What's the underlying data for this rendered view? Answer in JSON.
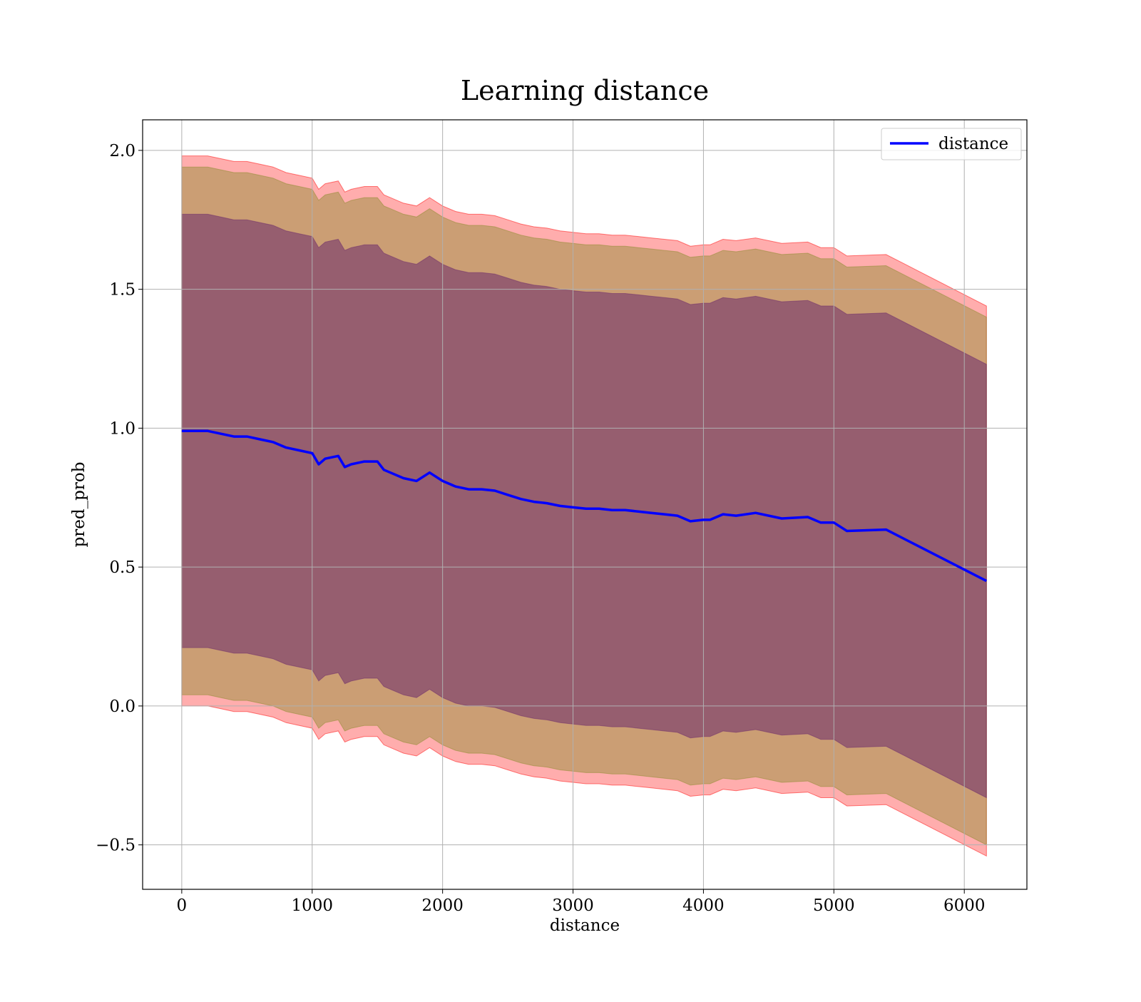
{
  "chart_data": {
    "type": "line",
    "title": "Learning distance",
    "xlabel": "distance",
    "ylabel": "pred_prob",
    "xlim": [
      -300,
      6480
    ],
    "ylim": [
      -0.66,
      2.11
    ],
    "x_ticks": [
      0,
      1000,
      2000,
      3000,
      4000,
      5000,
      6000
    ],
    "x_tick_labels": [
      "0",
      "1000",
      "2000",
      "3000",
      "4000",
      "5000",
      "6000"
    ],
    "y_ticks": [
      -0.5,
      0.0,
      0.5,
      1.0,
      1.5,
      2.0
    ],
    "y_tick_labels": [
      "−0.5",
      "0.0",
      "0.5",
      "1.0",
      "1.5",
      "2.0"
    ],
    "grid": true,
    "legend": {
      "position": "top-right",
      "entries": [
        "distance"
      ]
    },
    "colors": {
      "line": "#0000ff",
      "band_outer": "#ff0000",
      "band_middle": "#8b8b2e",
      "band_inner": "#6b2a6b"
    },
    "x": [
      0,
      100,
      200,
      300,
      400,
      500,
      600,
      700,
      800,
      900,
      1000,
      1050,
      1100,
      1200,
      1250,
      1300,
      1400,
      1500,
      1550,
      1600,
      1700,
      1800,
      1900,
      2000,
      2100,
      2200,
      2300,
      2400,
      2500,
      2600,
      2700,
      2800,
      2900,
      3000,
      3100,
      3200,
      3300,
      3400,
      3500,
      3600,
      3700,
      3800,
      3900,
      4000,
      4050,
      4150,
      4250,
      4400,
      4600,
      4800,
      4900,
      5000,
      5100,
      5400,
      6170
    ],
    "series": [
      {
        "name": "distance",
        "values": [
          0.99,
          0.99,
          0.99,
          0.98,
          0.97,
          0.97,
          0.96,
          0.95,
          0.93,
          0.92,
          0.91,
          0.87,
          0.89,
          0.9,
          0.86,
          0.87,
          0.88,
          0.88,
          0.85,
          0.84,
          0.82,
          0.81,
          0.84,
          0.81,
          0.79,
          0.78,
          0.78,
          0.775,
          0.76,
          0.745,
          0.735,
          0.73,
          0.72,
          0.715,
          0.71,
          0.71,
          0.705,
          0.705,
          0.7,
          0.695,
          0.69,
          0.685,
          0.665,
          0.67,
          0.67,
          0.69,
          0.685,
          0.695,
          0.675,
          0.68,
          0.66,
          0.66,
          0.63,
          0.635,
          0.45
        ]
      }
    ],
    "bands": [
      {
        "label": "outer",
        "offset": 0.99
      },
      {
        "label": "middle",
        "offset": 0.95
      },
      {
        "label": "inner",
        "offset": 0.78
      }
    ]
  }
}
